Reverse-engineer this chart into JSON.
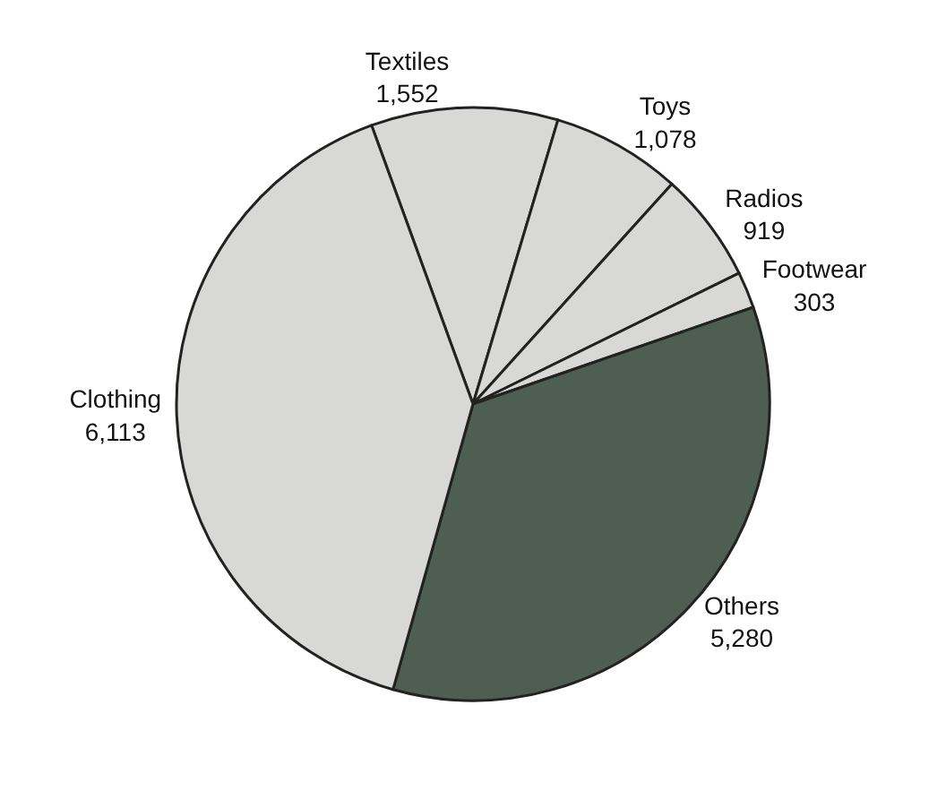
{
  "chart_data": {
    "type": "pie",
    "categories": [
      "Textiles",
      "Toys",
      "Radios",
      "Footwear",
      "Others",
      "Clothing"
    ],
    "values": [
      1552,
      1078,
      919,
      303,
      5280,
      6113
    ],
    "colors": [
      "#d8d8d6",
      "#d8d8d6",
      "#d8d8d6",
      "#d8d8d6",
      "#4f5e52",
      "#d8d8d6"
    ],
    "value_labels": [
      "1,552",
      "1,078",
      "919",
      "303",
      "5,280",
      "6,113"
    ]
  }
}
